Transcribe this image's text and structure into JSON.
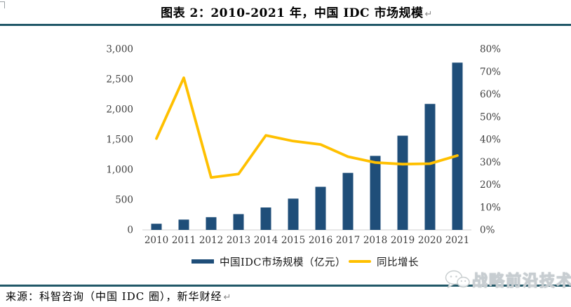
{
  "header": {
    "title": "图表 2：2010-2021 年，中国 IDC 市场规模",
    "paragraph_mark": "↵"
  },
  "footer": {
    "source": "来源：科智咨询（中国 IDC 圈），新华财经",
    "watermark": "战略前沿技术"
  },
  "colors": {
    "bar": "#1F4E79",
    "line": "#FFC000",
    "rule": "#215868",
    "axis_text": "#3F3F3F",
    "axis_line": "#D9D9D9"
  },
  "chart_data": {
    "type": "bar",
    "subtype": "combo bar+line, dual axis",
    "title": "图表 2：2010-2021 年，中国 IDC 市场规模",
    "categories": [
      "2010",
      "2011",
      "2012",
      "2013",
      "2014",
      "2015",
      "2016",
      "2017",
      "2018",
      "2019",
      "2020",
      "2021"
    ],
    "series": [
      {
        "name": "中国IDC市场规模（亿元）",
        "type": "bar",
        "axis": "left",
        "color": "#1F4E79",
        "values": [
          102,
          171,
          211,
          262,
          372,
          519,
          715,
          946,
          1228,
          1563,
          2090,
          2775
        ]
      },
      {
        "name": "同比增长",
        "type": "line",
        "axis": "right",
        "color": "#FFC000",
        "values": [
          40.4,
          67.3,
          23.2,
          24.7,
          41.8,
          39.3,
          37.8,
          32.4,
          29.8,
          29.1,
          29.3,
          32.9
        ]
      }
    ],
    "left_axis": {
      "min": 0,
      "max": 3000,
      "step": 500,
      "ticks": [
        "0",
        "500",
        "1,000",
        "1,500",
        "2,000",
        "2,500",
        "3,000"
      ]
    },
    "right_axis": {
      "min": 0,
      "max": 80,
      "step": 10,
      "ticks": [
        "0%",
        "10%",
        "20%",
        "30%",
        "40%",
        "50%",
        "60%",
        "70%",
        "80%"
      ]
    },
    "grid": false,
    "legend_position": "bottom"
  }
}
